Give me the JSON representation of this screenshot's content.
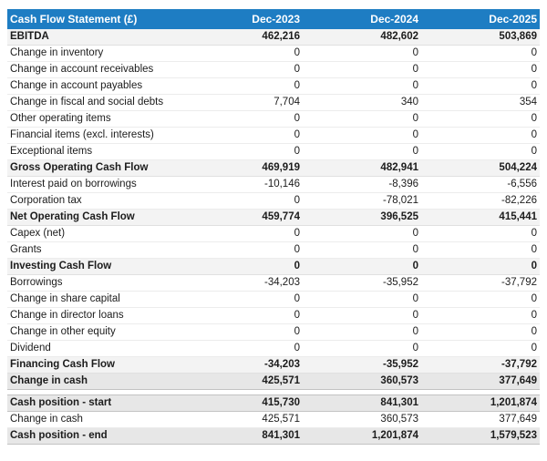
{
  "colors": {
    "header_bg": "#1e7dc3",
    "header_text": "#ffffff",
    "subtotal_bg": "#f3f3f3",
    "emphasis_bg": "#e7e7e7"
  },
  "table": {
    "title": "Cash Flow Statement (£)",
    "columns": [
      "Dec-2023",
      "Dec-2024",
      "Dec-2025"
    ],
    "sections": [
      {
        "rows": [
          {
            "label": "EBITDA",
            "values": [
              "462,216",
              "482,602",
              "503,869"
            ],
            "style": "subtotal"
          },
          {
            "label": "Change in inventory",
            "values": [
              "0",
              "0",
              "0"
            ],
            "style": "normal"
          },
          {
            "label": "Change in account receivables",
            "values": [
              "0",
              "0",
              "0"
            ],
            "style": "normal"
          },
          {
            "label": "Change in account payables",
            "values": [
              "0",
              "0",
              "0"
            ],
            "style": "normal"
          },
          {
            "label": "Change in fiscal and social debts",
            "values": [
              "7,704",
              "340",
              "354"
            ],
            "style": "normal"
          },
          {
            "label": "Other operating items",
            "values": [
              "0",
              "0",
              "0"
            ],
            "style": "normal"
          },
          {
            "label": "Financial items (excl. interests)",
            "values": [
              "0",
              "0",
              "0"
            ],
            "style": "normal"
          },
          {
            "label": "Exceptional items",
            "values": [
              "0",
              "0",
              "0"
            ],
            "style": "normal"
          },
          {
            "label": "Gross Operating Cash Flow",
            "values": [
              "469,919",
              "482,941",
              "504,224"
            ],
            "style": "subtotal"
          },
          {
            "label": "Interest paid on borrowings",
            "values": [
              "-10,146",
              "-8,396",
              "-6,556"
            ],
            "style": "normal"
          },
          {
            "label": "Corporation tax",
            "values": [
              "0",
              "-78,021",
              "-82,226"
            ],
            "style": "normal"
          },
          {
            "label": "Net Operating Cash Flow",
            "values": [
              "459,774",
              "396,525",
              "415,441"
            ],
            "style": "subtotal"
          },
          {
            "label": "Capex (net)",
            "values": [
              "0",
              "0",
              "0"
            ],
            "style": "normal"
          },
          {
            "label": "Grants",
            "values": [
              "0",
              "0",
              "0"
            ],
            "style": "normal"
          },
          {
            "label": "Investing Cash Flow",
            "values": [
              "0",
              "0",
              "0"
            ],
            "style": "subtotal"
          },
          {
            "label": "Borrowings",
            "values": [
              "-34,203",
              "-35,952",
              "-37,792"
            ],
            "style": "normal"
          },
          {
            "label": "Change in share capital",
            "values": [
              "0",
              "0",
              "0"
            ],
            "style": "normal"
          },
          {
            "label": "Change in director loans",
            "values": [
              "0",
              "0",
              "0"
            ],
            "style": "normal"
          },
          {
            "label": "Change in other equity",
            "values": [
              "0",
              "0",
              "0"
            ],
            "style": "normal"
          },
          {
            "label": "Dividend",
            "values": [
              "0",
              "0",
              "0"
            ],
            "style": "normal"
          },
          {
            "label": "Financing Cash Flow",
            "values": [
              "-34,203",
              "-35,952",
              "-37,792"
            ],
            "style": "subtotal"
          },
          {
            "label": "Change in cash",
            "values": [
              "425,571",
              "360,573",
              "377,649"
            ],
            "style": "emphasis"
          }
        ]
      },
      {
        "rows": [
          {
            "label": "Cash position - start",
            "values": [
              "415,730",
              "841,301",
              "1,201,874"
            ],
            "style": "emphasis"
          },
          {
            "label": "Change in cash",
            "values": [
              "425,571",
              "360,573",
              "377,649"
            ],
            "style": "normal"
          },
          {
            "label": "Cash position - end",
            "values": [
              "841,301",
              "1,201,874",
              "1,579,523"
            ],
            "style": "emphasis"
          }
        ]
      }
    ]
  }
}
